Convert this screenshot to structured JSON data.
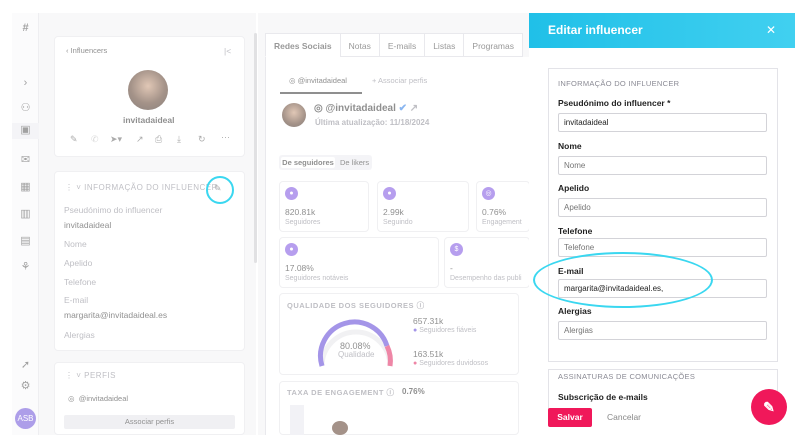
{
  "sidebar": {
    "logo": "#",
    "avatar_initials": "ASB"
  },
  "left": {
    "back_label": "Influencers",
    "collapse": "|<",
    "profile_name": "invitadaideal",
    "section_title": "INFORMAÇÃO DO INFLUENCER",
    "fields": [
      {
        "label": "Pseudónimo do influencer",
        "value": "invitadaideal"
      },
      {
        "label": "Nome",
        "value": ""
      },
      {
        "label": "Apelido",
        "value": ""
      },
      {
        "label": "Telefone",
        "value": ""
      },
      {
        "label": "E-mail",
        "value": "margarita@invitadaideal.es"
      },
      {
        "label": "Alergias",
        "value": ""
      }
    ],
    "perfis_title": "PERFIS",
    "perfis_handle": "@invitadaideal",
    "associar_btn": "Associar perfis"
  },
  "mid": {
    "tabs": [
      "Redes Sociais",
      "Notas",
      "E-mails",
      "Listas",
      "Programas"
    ],
    "sub_handle": "@invitadaideal",
    "sub_add": "+ Associar perfis",
    "profile_handle": "@invitadaideal",
    "last_update": "Última atualização: 11/18/2024",
    "toggle": [
      "De seguidores",
      "De likers"
    ],
    "stats": [
      {
        "value": "820.81k",
        "label": "Seguidores"
      },
      {
        "value": "2.99k",
        "label": "Seguindo"
      },
      {
        "value": "0.76%",
        "label": "Engagement"
      },
      {
        "value": "17.08%",
        "label": "Seguidores notáveis"
      },
      {
        "value": "-",
        "label": "Desempenho das publi"
      }
    ],
    "quality_title": "QUALIDADE DOS SEGUIDORES",
    "quality_pct": "80.08%",
    "quality_label": "Qualidade",
    "real_value": "657.31k",
    "real_label": "Seguidores fiáveis",
    "fake_value": "163.51k",
    "fake_label": "Seguidores duvidosos",
    "engagement_title": "TAXA DE ENGAGEMENT",
    "engagement_value": "0.76%"
  },
  "drawer": {
    "title": "Editar influencer",
    "close": "✕",
    "section": "INFORMAÇÃO DO INFLUENCER",
    "pseudo_label": "Pseudónimo do influencer *",
    "pseudo_value": "invitadaideal",
    "nome_label": "Nome",
    "nome_ph": "Nome",
    "apelido_label": "Apelido",
    "apelido_ph": "Apelido",
    "telefone_label": "Telefone",
    "telefone_ph": "Telefone",
    "email_label": "E-mail",
    "email_value": "margarita@invitadaideal.es,",
    "alergias_label": "Alergias",
    "alergias_ph": "Alergias",
    "section2": "ASSINATURAS DE COMUNICAÇÕES",
    "subs_label": "Subscrição de e-mails",
    "save": "Salvar",
    "cancel": "Cancelar"
  },
  "colors": {
    "brand": "#f0185a",
    "accent": "#20c0e8",
    "purple": "#7b4fe0"
  }
}
